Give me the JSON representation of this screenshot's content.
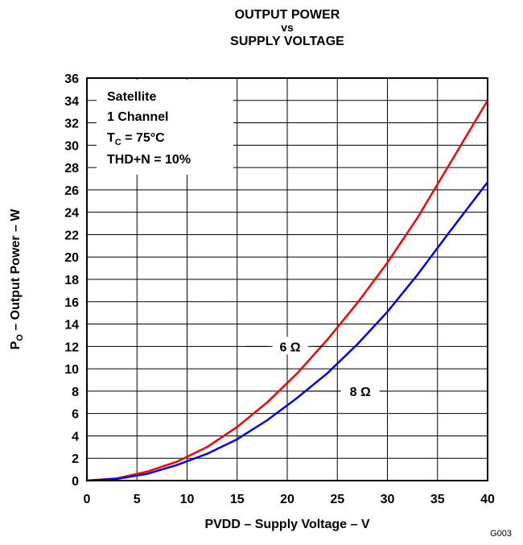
{
  "chart_data": {
    "type": "line",
    "title_lines": [
      "OUTPUT POWER",
      "vs",
      "SUPPLY VOLTAGE"
    ],
    "xlabel": "PVDD – Supply Voltage – V",
    "ylabel_main": "P",
    "ylabel_sub": "O",
    "ylabel_rest": " – Output Power – W",
    "xlim": [
      0,
      40
    ],
    "ylim": [
      0,
      36
    ],
    "x_ticks": [
      0,
      5,
      10,
      15,
      20,
      25,
      30,
      35,
      40
    ],
    "y_ticks": [
      0,
      2,
      4,
      6,
      8,
      10,
      12,
      14,
      16,
      18,
      20,
      22,
      24,
      26,
      28,
      30,
      32,
      34,
      36
    ],
    "grid": true,
    "conditions": {
      "line1": "Satellite",
      "line2": "1 Channel",
      "line3_main": "T",
      "line3_sub": "C",
      "line3_rest": " = 75°C",
      "line4": "THD+N = 10%"
    },
    "series": [
      {
        "name": "6 Ω",
        "color": "#ff0000",
        "x": [
          0,
          3,
          6,
          9,
          12,
          15,
          18,
          21,
          24,
          27,
          30,
          33,
          36,
          40
        ],
        "y": [
          0,
          0.2,
          0.8,
          1.7,
          3.0,
          4.8,
          7.0,
          9.6,
          12.6,
          15.9,
          19.5,
          23.5,
          28.0,
          34.0
        ]
      },
      {
        "name": "8 Ω",
        "color": "#0000ff",
        "x": [
          0,
          3,
          6,
          9,
          12,
          15,
          18,
          21,
          24,
          27,
          30,
          33,
          36,
          40
        ],
        "y": [
          0,
          0.15,
          0.6,
          1.4,
          2.4,
          3.7,
          5.4,
          7.4,
          9.6,
          12.2,
          15.1,
          18.4,
          22.0,
          26.7
        ]
      }
    ],
    "annotations": [
      {
        "text": "6 Ω",
        "x": 19,
        "y": 12,
        "target_x": 23.5,
        "target_y": 12
      },
      {
        "text": "8 Ω",
        "x": 26,
        "y": 8,
        "target_x": 21.5,
        "target_x2": 30,
        "target_y": 8
      }
    ],
    "figure_id": "G003"
  }
}
